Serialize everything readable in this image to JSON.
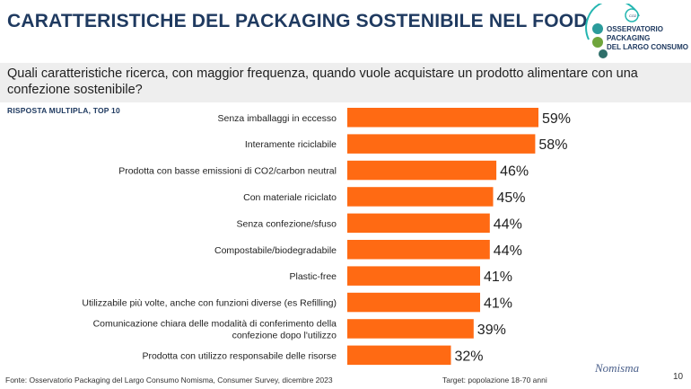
{
  "header": {
    "title": "CARATTERISTICHE DEL PACKAGING SOSTENIBILE NEL FOOD",
    "logo_lines": [
      "OSSERVATORIO",
      "PACKAGING",
      "DEL LARGO CONSUMO"
    ]
  },
  "question": "Quali caratteristiche ricerca, con maggior frequenza, quando vuole acquistare un prodotto alimentare con una confezione sostenibile?",
  "subtitle": "RISPOSTA MULTIPLA, TOP 10",
  "chart_data": {
    "type": "bar",
    "orientation": "horizontal",
    "bar_color": "#ff6a13",
    "categories": [
      "Senza imballaggi in eccesso",
      "Interamente riciclabile",
      "Prodotta con basse emissioni di CO2/carbon neutral",
      "Con materiale riciclato",
      "Senza confezione/sfuso",
      "Compostabile/biodegradabile",
      "Plastic-free",
      "Utilizzabile più volte, anche con funzioni diverse (es Refilling)",
      "Comunicazione chiara delle modalità di conferimento della confezione dopo l'utilizzo",
      "Prodotta con utilizzo responsabile delle risorse"
    ],
    "category_lines": [
      [
        "Senza imballaggi in eccesso"
      ],
      [
        "Interamente riciclabile"
      ],
      [
        "Prodotta con basse emissioni di CO2/carbon neutral"
      ],
      [
        "Con materiale riciclato"
      ],
      [
        "Senza confezione/sfuso"
      ],
      [
        "Compostabile/biodegradabile"
      ],
      [
        "Plastic-free"
      ],
      [
        "Utilizzabile più volte, anche con funzioni diverse (es Refilling)"
      ],
      [
        "Comunicazione chiara delle modalità di conferimento della",
        "confezione dopo l'utilizzo"
      ],
      [
        "Prodotta con utilizzo responsabile delle risorse"
      ]
    ],
    "values": [
      59,
      58,
      46,
      45,
      44,
      44,
      41,
      41,
      39,
      32
    ],
    "value_labels": [
      "59%",
      "58%",
      "46%",
      "45%",
      "44%",
      "44%",
      "41%",
      "41%",
      "39%",
      "32%"
    ],
    "xlim": [
      0,
      100
    ],
    "grid": false
  },
  "footer": {
    "source": "Fonte: Osservatorio Packaging del Largo Consumo Nomisma, Consumer Survey, dicembre 2023",
    "target": "Target: popolazione 18-70 anni",
    "brand": "Nomisma",
    "page": "10"
  }
}
